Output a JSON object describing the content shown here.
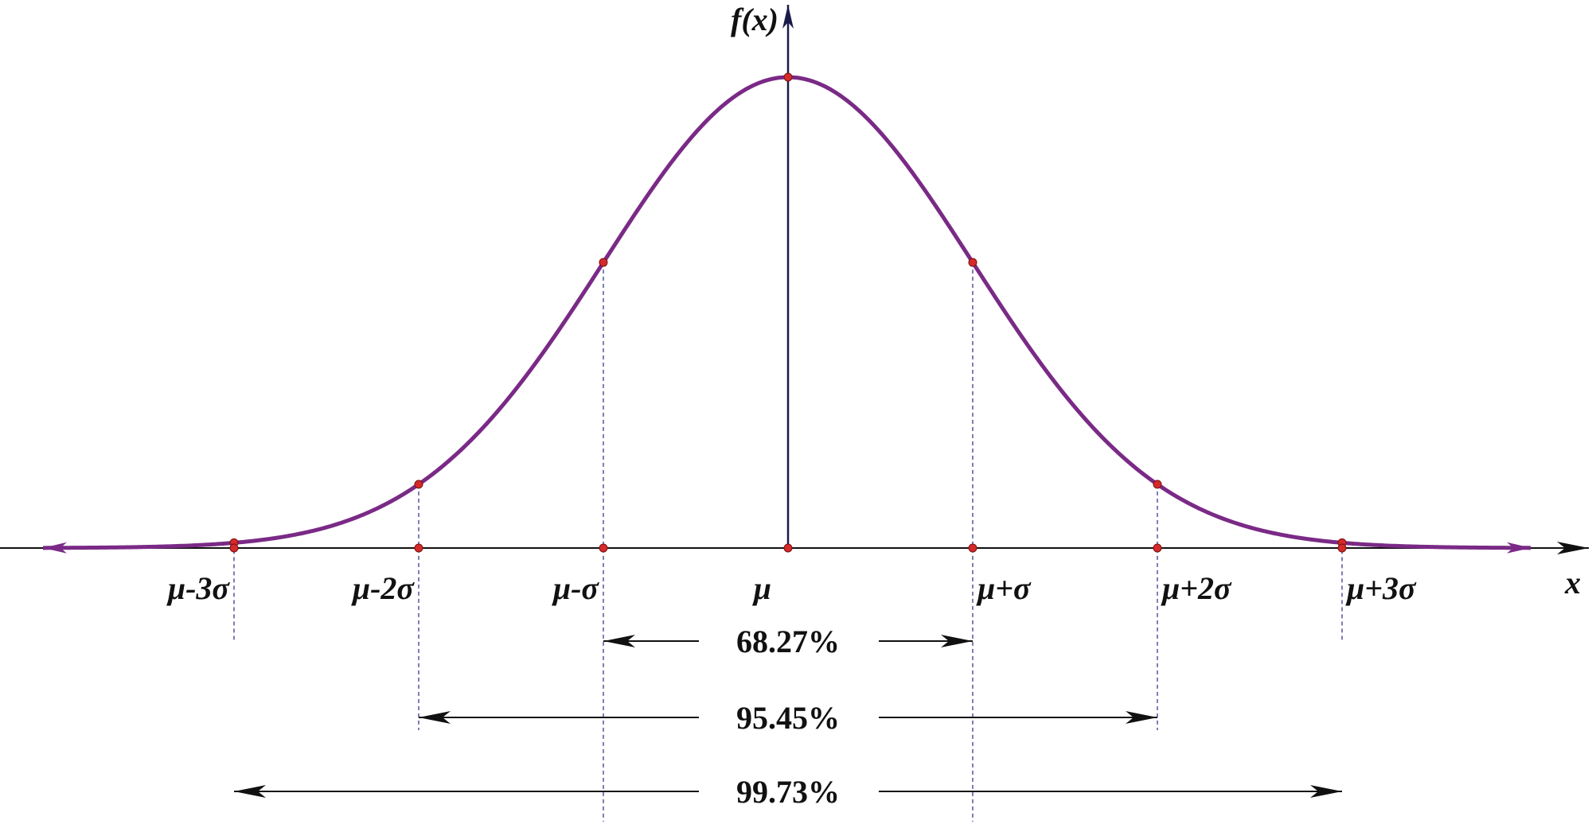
{
  "y_axis_label": "f(x)",
  "x_axis_label": "x",
  "x_labels": [
    "μ-3σ",
    "μ-2σ",
    "μ-σ",
    "μ",
    "μ+σ",
    "μ+2σ",
    "μ+3σ"
  ],
  "intervals": [
    "68.27%",
    "95.45%",
    "99.73%"
  ]
}
